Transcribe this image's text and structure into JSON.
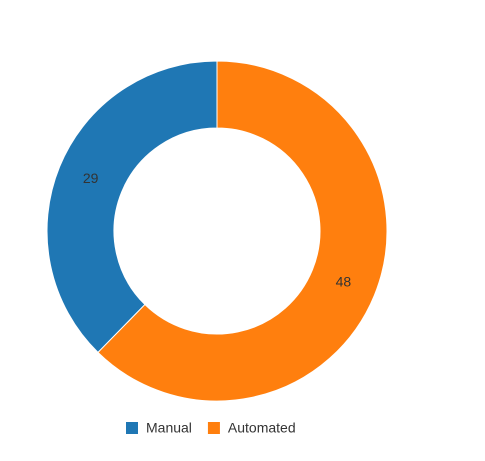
{
  "chart_data": {
    "type": "donut",
    "categories": [
      "Manual",
      "Automated"
    ],
    "values": [
      29,
      48
    ],
    "colors": [
      "#1f77b4",
      "#ff7f0e"
    ]
  }
}
